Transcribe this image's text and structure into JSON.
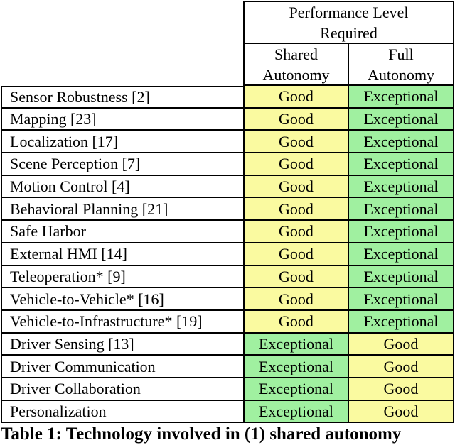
{
  "colors": {
    "good": "#FAFAA0",
    "exceptional": "#A0F0A0",
    "border": "#000000"
  },
  "header": {
    "performance": [
      "Performance Level",
      "Required"
    ],
    "shared": [
      "Shared",
      "Autonomy"
    ],
    "full": [
      "Full",
      "Autonomy"
    ]
  },
  "table": {
    "rows": [
      {
        "label": "Sensor Robustness [2]",
        "shared": "Good",
        "full": "Exceptional"
      },
      {
        "label": "Mapping [23]",
        "shared": "Good",
        "full": "Exceptional"
      },
      {
        "label": "Localization [17]",
        "shared": "Good",
        "full": "Exceptional"
      },
      {
        "label": "Scene Perception [7]",
        "shared": "Good",
        "full": "Exceptional"
      },
      {
        "label": "Motion Control [4]",
        "shared": "Good",
        "full": "Exceptional"
      },
      {
        "label": "Behavioral Planning [21]",
        "shared": "Good",
        "full": "Exceptional"
      },
      {
        "label": "Safe Harbor",
        "shared": "Good",
        "full": "Exceptional"
      },
      {
        "label": "External HMI [14]",
        "shared": "Good",
        "full": "Exceptional"
      },
      {
        "label": "Teleoperation* [9]",
        "shared": "Good",
        "full": "Exceptional"
      },
      {
        "label": "Vehicle-to-Vehicle* [16]",
        "shared": "Good",
        "full": "Exceptional"
      },
      {
        "label": "Vehicle-to-Infrastructure* [19]",
        "shared": "Good",
        "full": "Exceptional"
      },
      {
        "label": "Driver Sensing [13]",
        "shared": "Exceptional",
        "full": "Good"
      },
      {
        "label": "Driver Communication",
        "shared": "Exceptional",
        "full": "Good"
      },
      {
        "label": "Driver Collaboration",
        "shared": "Exceptional",
        "full": "Good"
      },
      {
        "label": "Personalization",
        "shared": "Exceptional",
        "full": "Good"
      }
    ]
  },
  "caption": "Table 1: Technology involved in (1) shared autonomy"
}
